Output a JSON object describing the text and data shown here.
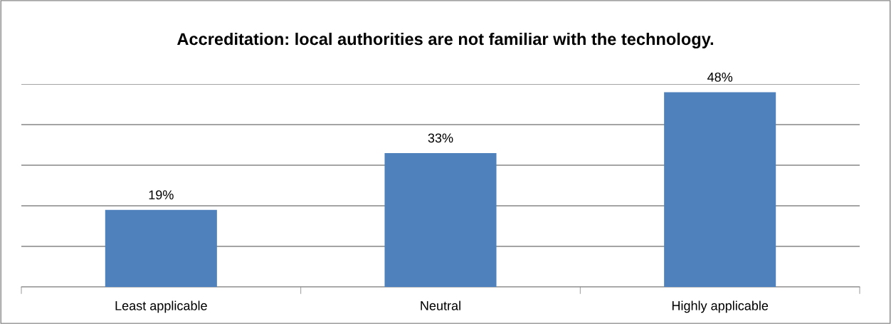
{
  "chart_data": {
    "type": "bar",
    "title": "Accreditation: local authorities are not familiar with the technology.",
    "categories": [
      "Least applicable",
      "Neutral",
      "Highly applicable"
    ],
    "values": [
      19,
      33,
      48
    ],
    "color": "#4f81bd",
    "value_labels": [
      "19%",
      "33%",
      "48%"
    ],
    "ylim": [
      0,
      50
    ],
    "yticks": [
      {
        "value": 0,
        "label": null
      },
      {
        "value": 10,
        "label": null
      },
      {
        "value": 20,
        "label": null
      },
      {
        "value": 30,
        "label": null
      },
      {
        "value": 40,
        "label": null
      },
      {
        "value": 50,
        "label": null
      }
    ],
    "grid": "y",
    "tick_labels": "x"
  }
}
